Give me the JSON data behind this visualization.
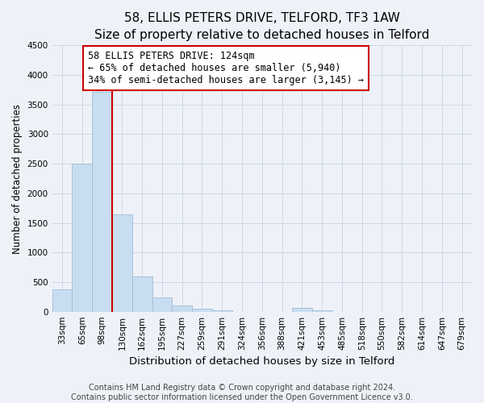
{
  "title": "58, ELLIS PETERS DRIVE, TELFORD, TF3 1AW",
  "subtitle": "Size of property relative to detached houses in Telford",
  "xlabel": "Distribution of detached houses by size in Telford",
  "ylabel": "Number of detached properties",
  "bar_labels": [
    "33sqm",
    "65sqm",
    "98sqm",
    "130sqm",
    "162sqm",
    "195sqm",
    "227sqm",
    "259sqm",
    "291sqm",
    "324sqm",
    "356sqm",
    "388sqm",
    "421sqm",
    "453sqm",
    "485sqm",
    "518sqm",
    "550sqm",
    "582sqm",
    "614sqm",
    "647sqm",
    "679sqm"
  ],
  "bar_values": [
    380,
    2500,
    3720,
    1640,
    600,
    240,
    100,
    55,
    20,
    0,
    0,
    0,
    60,
    20,
    0,
    0,
    0,
    0,
    0,
    0,
    0
  ],
  "bar_color": "#c9ddf0",
  "bar_edge_color": "#9dbdd8",
  "property_line_index": 2,
  "property_line_color": "#cc0000",
  "annotation_line1": "58 ELLIS PETERS DRIVE: 124sqm",
  "annotation_line2": "← 65% of detached houses are smaller (5,940)",
  "annotation_line3": "34% of semi-detached houses are larger (3,145) →",
  "annotation_box_color": "#ffffff",
  "annotation_box_edge": "#cc0000",
  "ylim": [
    0,
    4500
  ],
  "yticks": [
    0,
    500,
    1000,
    1500,
    2000,
    2500,
    3000,
    3500,
    4000,
    4500
  ],
  "footer_line1": "Contains HM Land Registry data © Crown copyright and database right 2024.",
  "footer_line2": "Contains public sector information licensed under the Open Government Licence v3.0.",
  "bg_color": "#eef2f8",
  "plot_bg_color": "#eef2f8",
  "title_fontsize": 11,
  "subtitle_fontsize": 9.5,
  "xlabel_fontsize": 9.5,
  "ylabel_fontsize": 8.5,
  "tick_fontsize": 7.5,
  "annotation_fontsize": 8.5,
  "footer_fontsize": 7
}
